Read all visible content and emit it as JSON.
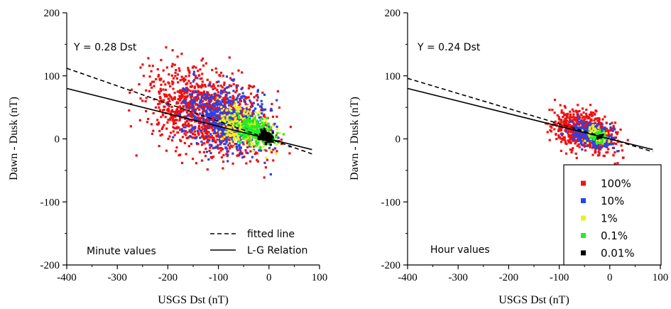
{
  "chart_data": [
    {
      "type": "scatter",
      "panel": "left",
      "xlabel": "USGS Dst (nT)",
      "ylabel": "Dawn - Dusk (nT)",
      "xlim": [
        -400,
        100
      ],
      "ylim": [
        -200,
        200
      ],
      "xticks": [
        -400,
        -300,
        -200,
        -100,
        0,
        100
      ],
      "yticks": [
        -200,
        -100,
        0,
        100,
        200
      ],
      "annotation_equation": "Y = 0.28 Dst",
      "annotation_label": "Minute values",
      "lines": [
        {
          "name": "fitted line",
          "style": "dashed",
          "slope": -0.28,
          "intercept": 0
        },
        {
          "name": "L-G Relation",
          "style": "solid",
          "slope": -0.2,
          "intercept": 0
        }
      ],
      "legend": {
        "placement": "bottom-right",
        "entries": [
          "fitted line",
          "L-G Relation"
        ]
      },
      "density_levels": [
        {
          "label": "100%",
          "color": "#ee1111",
          "center": [
            -120,
            40
          ],
          "spread": [
            85,
            45
          ],
          "count": 1200
        },
        {
          "label": "10%",
          "color": "#2244ee",
          "center": [
            -80,
            30
          ],
          "spread": [
            60,
            35
          ],
          "count": 550
        },
        {
          "label": "1%",
          "color": "#eeee22",
          "center": [
            -45,
            18
          ],
          "spread": [
            40,
            22
          ],
          "count": 300
        },
        {
          "label": "0.1%",
          "color": "#22ee22",
          "center": [
            -25,
            12
          ],
          "spread": [
            28,
            15
          ],
          "count": 220
        },
        {
          "label": "0.01%",
          "color": "#000000",
          "center": [
            -5,
            3
          ],
          "spread": [
            9,
            6
          ],
          "count": 140
        }
      ]
    },
    {
      "type": "scatter",
      "panel": "right",
      "xlabel": "USGS Dst (nT)",
      "ylabel": "Dawn - Dusk (nT)",
      "xlim": [
        -400,
        100
      ],
      "ylim": [
        -200,
        200
      ],
      "xticks": [
        -400,
        -300,
        -200,
        -100,
        0,
        100
      ],
      "yticks": [
        -200,
        -100,
        0,
        100,
        200
      ],
      "annotation_equation": "Y = 0.24 Dst",
      "annotation_label": "Hour values",
      "lines": [
        {
          "name": "fitted line",
          "style": "dashed",
          "slope": -0.24,
          "intercept": 0
        },
        {
          "name": "L-G Relation",
          "style": "solid",
          "slope": -0.2,
          "intercept": 0
        }
      ],
      "legend": {
        "placement": "bottom-right",
        "entries": [
          {
            "label": "100%",
            "color": "#ee1111"
          },
          {
            "label": "10%",
            "color": "#2244ee"
          },
          {
            "label": "1%",
            "color": "#eeee22"
          },
          {
            "label": "0.1%",
            "color": "#22ee22"
          },
          {
            "label": "0.01%",
            "color": "#000000"
          }
        ]
      },
      "density_levels": [
        {
          "label": "100%",
          "color": "#ee1111",
          "center": [
            -50,
            12
          ],
          "spread": [
            45,
            22
          ],
          "count": 700
        },
        {
          "label": "10%",
          "color": "#2244ee",
          "center": [
            -35,
            8
          ],
          "spread": [
            28,
            14
          ],
          "count": 260
        },
        {
          "label": "1%",
          "color": "#eeee22",
          "center": [
            -25,
            5
          ],
          "spread": [
            16,
            9
          ],
          "count": 90
        },
        {
          "label": "0.1%",
          "color": "#22ee22",
          "center": [
            -22,
            4
          ],
          "spread": [
            10,
            6
          ],
          "count": 50
        },
        {
          "label": "0.01%",
          "color": "#000000",
          "center": [
            -20,
            3
          ],
          "spread": [
            5,
            3
          ],
          "count": 15
        }
      ]
    }
  ]
}
